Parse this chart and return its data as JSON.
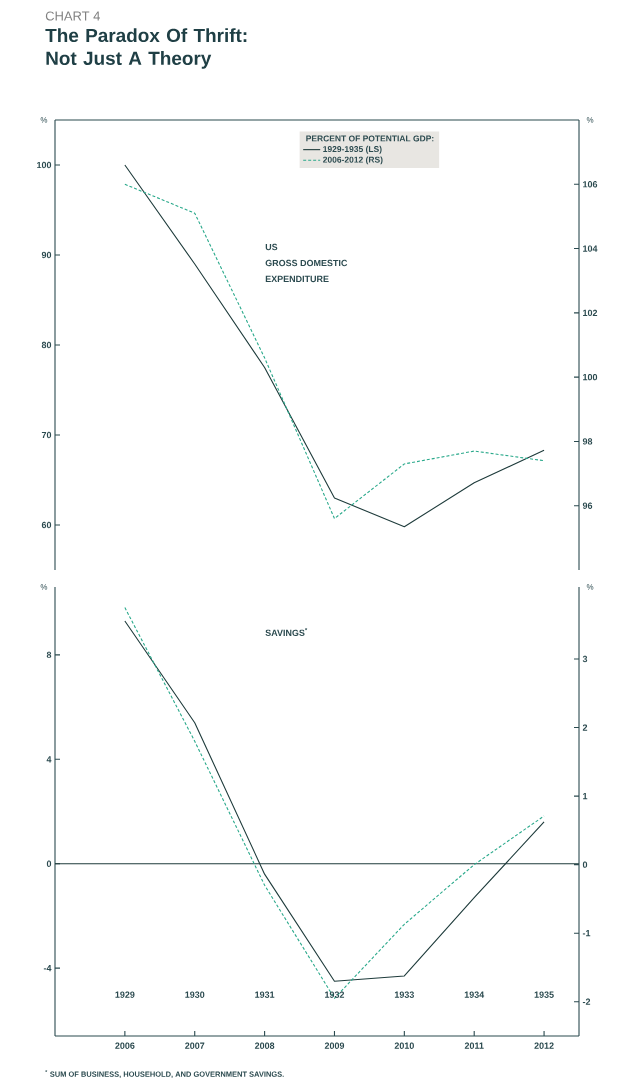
{
  "chart_data": [
    {
      "type": "line",
      "title": "The Paradox Of Thrift: Not Just A Theory",
      "annotations": [
        "CHART 4",
        "US",
        "GROSS DOMESTIC",
        "EXPENDITURE"
      ],
      "ylabel": "%",
      "y2label": "%",
      "legend_title": "PERCENT OF POTENTIAL GDP:",
      "legend": "top",
      "tick_labels": "y",
      "marker": "none",
      "categories": [
        "2006",
        "2007",
        "2008",
        "2009",
        "2010",
        "2011",
        "2012"
      ],
      "series": [
        {
          "name": "1929-1935 (LS)",
          "color": "#1e3b3b",
          "line_style": "solid",
          "axis": "y",
          "values": [
            100,
            89,
            77.5,
            63,
            59.8,
            64.7,
            68.3
          ]
        },
        {
          "name": "2006-2012 (RS)",
          "color": "#2aa98b",
          "line_style": "dashed",
          "axis": "y2",
          "values": [
            106,
            105.1,
            100.6,
            95.6,
            97.3,
            97.7,
            97.4
          ]
        }
      ],
      "ylim": [
        55,
        105
      ],
      "yticks": [
        60,
        70,
        80,
        90,
        100
      ],
      "y2lim": [
        94,
        108
      ],
      "y2ticks": [
        96,
        98,
        100,
        102,
        104,
        106
      ]
    },
    {
      "type": "line",
      "annotations": [
        "SAVINGS$^{*}$",
        "$^{*}$ SUM OF BUSINESS, HOUSEHOLD, AND GOVERNMENT SAVINGS."
      ],
      "ylabel": "%",
      "y2label": "%",
      "marker": "none",
      "categories": [
        "2006",
        "2007",
        "2008",
        "2009",
        "2010",
        "2011",
        "2012"
      ],
      "series": [
        {
          "color": "#1e3b3b",
          "line_style": "solid",
          "axis": "y",
          "values": [
            9.3,
            5.4,
            -0.4,
            -4.5,
            -4.3,
            -1.3,
            1.6
          ]
        },
        {
          "color": "#2aa98b",
          "line_style": "dashed",
          "axis": "y2",
          "values": [
            3.75,
            1.8,
            -0.3,
            -1.95,
            -0.87,
            0,
            0.71
          ]
        }
      ],
      "ylim": [
        -6.6,
        10.6
      ],
      "yticks": [
        -4,
        0,
        4,
        8
      ],
      "y2lim": [
        -2.5,
        4.05
      ],
      "y2ticks": [
        -2,
        -1,
        0,
        1,
        2,
        3
      ],
      "x2lim": [
        1928,
        1935.5
      ],
      "x2ticks": [
        1929,
        1930,
        1931,
        1932,
        1933,
        1934,
        1935
      ],
      "ref_lines": [
        {
          "axis": "y",
          "value": 0,
          "color": "#1e3b3b"
        }
      ]
    }
  ]
}
